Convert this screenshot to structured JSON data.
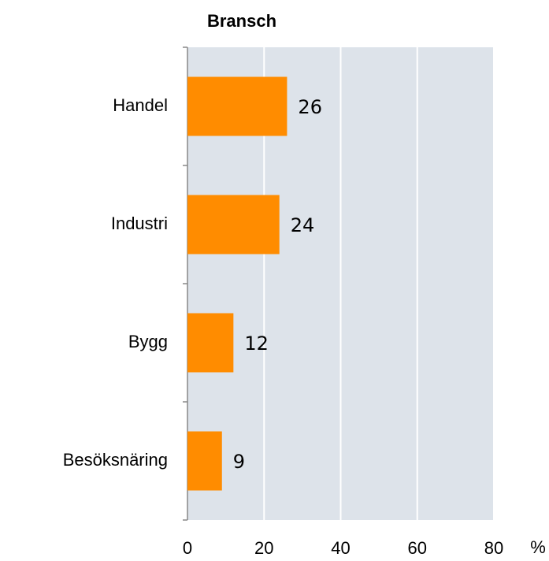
{
  "chart_data": {
    "type": "bar",
    "orientation": "horizontal",
    "title": "Bransch",
    "categories": [
      "Handel",
      "Industri",
      "Bygg",
      "Besöksnäring"
    ],
    "values": [
      26,
      24,
      12,
      9
    ],
    "color": "#ff8c00",
    "xlim": [
      0,
      80
    ],
    "xticks": [
      0,
      20,
      40,
      60,
      80
    ],
    "x_label": "%",
    "grid": true
  }
}
